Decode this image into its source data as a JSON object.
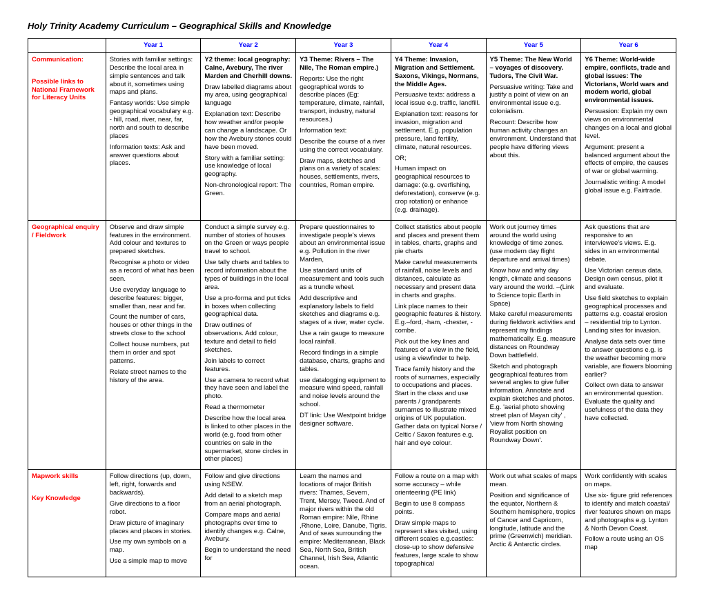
{
  "title": "Holy Trinity Academy Curriculum – Geographical Skills and Knowledge",
  "headers": [
    "Year 1",
    "Year 2",
    "Year 3",
    "Year 4",
    "Year 5",
    "Year 6"
  ],
  "rows": [
    {
      "label_lines": [
        "Communication:",
        "",
        "Possible links to National Framework for Literacy Units"
      ],
      "cells": [
        [
          "Stories with familiar settings: Describe the local area in simple sentences and talk about it, sometimes using maps and plans.",
          "Fantasy worlds: Use simple geographical vocabulary e.g. - hill, road, river, near, far, north and south to describe places",
          "Information texts: Ask and answer questions about places."
        ],
        [
          {
            "bold": true,
            "text": "Y2 theme: local geography: Calne, Avebury, The river Marden and Cherhill downs."
          },
          "Draw labelled diagrams about my area, using geographical language",
          "Explanation text: Describe how weather and/or people can change a landscape. Or how the Avebury stones could have been moved.",
          "Story with a familiar setting: use knowledge of local geography.",
          "Non-chronological report: The Green."
        ],
        [
          {
            "bold": true,
            "text": "Y3 Theme: Rivers – The Nile, The Roman empire.)"
          },
          "Reports:  Use the right geographical words to describe places (Eg: temperature, climate, rainfall, transport, industry, natural resources.)",
          "Information text:",
          "Describe the course of a river using the correct vocabulary.",
          "Draw maps, sketches and plans on a variety of scales: houses, settlements, rivers, countries, Roman empire."
        ],
        [
          {
            "bold": true,
            "text": "Y4 Theme: Invasion, Migration and Settlement.  Saxons, Vikings, Normans, the Middle Ages."
          },
          "Persuasive texts: address a local issue e.g. traffic, landfill.",
          "Explanation text: reasons for invasion, migration and settlement.  E.g. population pressure, land fertility, climate, natural resources.",
          "OR;",
          "Human impact on geographical resources to damage: (e.g. overfishing, deforestation), conserve (e.g. crop rotation) or enhance (e.g. drainage)."
        ],
        [
          {
            "bold": true,
            "text": "Y5 Theme: The New World – voyages of discovery.  Tudors, The Civil War."
          },
          "Persuasive writing: Take and justify a point of view on an environmental issue e.g. colonialism.",
          "Recount: Describe how human activity changes an environment. Understand that people have differing views about this."
        ],
        [
          {
            "bold": true,
            "text": "Y6 Theme: World-wide empire, conflicts, trade  and global issues: The Victorians, World wars and modern world, global environmental issues."
          },
          "Persuasion: Explain my own views on environmental changes on a local and global level.",
          "Argument: present a balanced argument about the effects of empire, the causes of war or global warming.",
          "Journalistic writing: A model global issue e.g. Fairtrade."
        ]
      ]
    },
    {
      "label_lines": [
        "Geographical enquiry / Fieldwork"
      ],
      "cells": [
        [
          "Observe and draw simple features in the environment.  Add colour and textures to prepared sketches.",
          "Recognise a photo or video as a record of what has been seen.",
          "Use everyday language to describe features: bigger, smaller than, near and far.",
          "Count the number of cars, houses or other things in the streets close to the school",
          "Collect house numbers, put them in order and spot patterns.",
          "Relate street names to the history of the area."
        ],
        [
          "Conduct a simple survey e.g. number of stories of houses on the Green or ways people travel to school.",
          "Use tally charts and tables to record information about the types of buildings in the local area.",
          "Use a pro-forma and put ticks in boxes when collecting geographical data.",
          "Draw outlines of observations.  Add colour, texture and detail to field sketches.",
          "Join labels to correct features.",
          "Use a camera to record what they have seen and label the photo.",
          "Read a thermometer",
          "Describe how the local area is linked to other places in the world (e.g. food from other countries on sale in the supermarket, stone circles in other places)"
        ],
        [
          "Prepare questionnaires to investigate people's views about an environmental issue e.g. Pollution in the river Marden,",
          "Use standard units of measurement and tools such as a trundle wheel.",
          "Add descriptive and explanatory labels to field sketches and diagrams e.g. stages of a river, water cycle.",
          "Use a rain gauge to measure local rainfall.",
          "Record findings in a simple database,  charts, graphs and tables.",
          "use datalogging equipment to measure wind speed, rainfall and noise levels around the school.",
          "DT link: Use Westpoint bridge designer software."
        ],
        [
          "Collect statistics about people and places and present them in tables, charts, graphs and pie charts",
          "Make careful measurements of rainfall, noise levels and distances, calculate as necessary and present data in charts and graphs.",
          "Link place names to their geographic features & history. E.g.–ford, -ham, -chester, -combe.",
          "Pick out the key lines and features of a view in the field, using a viewfinder to help.",
          "Trace family history and the roots of surnames, especially to occupations and places.  Start in the class and use parents / grandparents surnames to illustrate mixed origins of UK population.  Gather data on typical Norse / Celtic / Saxon features e.g. hair and eye colour."
        ],
        [
          "Work out journey times around the world using knowledge of time zones. (use modern day flight departure and arrival times)",
          "Know how and why day length, climate and seasons vary around the world. –(Link to Science topic Earth in Space)",
          "Make careful measurements during fieldwork activities and represent my findings mathematically. E.g. measure distances on Roundway Down battlefield.",
          "Sketch and photograph geographical features from several angles to give fuller information.  Annotate and explain sketches and photos. E.g. 'aerial photo showing street plan of Mayan city' ,  'view from North showing Royalist position on Roundway Down'."
        ],
        [
          "Ask questions that are responsive to an interviewee's views. E.g. sides in an environmental debate.",
          "Use Victorian census data. Design own census, pilot it and evaluate.",
          "Use field sketches to explain geographical processes and patterns e.g. coastal erosion – residential trip to Lynton. Landing sites for invasion.",
          "Analyse data sets over time to answer questions e.g. is the weather becoming more variable, are flowers blooming earlier?",
          "Collect own data to answer an environmental question. Evaluate the quality and usefulness of the data they have collected."
        ]
      ]
    },
    {
      "label_lines": [
        "Mapwork skills",
        "",
        "Key Knowledge"
      ],
      "cells": [
        [
          "Follow directions (up, down, left, right, forwards and backwards).",
          "Give directions to a floor robot.",
          "Draw picture of imaginary places and places in stories.",
          "Use my own symbols on a map.",
          "Use a simple map to move"
        ],
        [
          "Follow and give directions using NSEW.",
          "Add detail to a sketch map from an aerial photograph.",
          "Compare maps and aerial photographs over time to identify changes e.g. Calne, Avebury.",
          "Begin to understand the need for"
        ],
        [
          "Learn the names and locations of major British rivers: Thames, Severn, Trent, Mersey, Tweed. And of major rivers within the old Roman empire: Nile, Rhine ,Rhone, Loire, Danube, Tigris. And of seas surrounding the empire: Mediterranean, Black Sea, North Sea, British Channel, Irish Sea, Atlantic ocean."
        ],
        [
          "Follow a route on a map with some accuracy – while orienteering (PE link)",
          "Begin to use 8 compass points.",
          "Draw simple maps to represent sites visited, using different scales e.g.castles:  close-up to show defensive features, large scale to show topographical"
        ],
        [
          "Work out what scales of maps mean.",
          "Position and significance of the equator, Northern & Southern hemisphere,  tropics of Cancer and Capricorn, longitude, latitude and the prime (Greenwich) meridian. Arctic & Antarctic circles."
        ],
        [
          "Work confidently with scales on maps.",
          "Use six- figure grid references to identify and match coastal/ river features shown on maps and photographs e.g.  Lynton & North Devon Coast.",
          "Follow a route using an OS map"
        ]
      ]
    }
  ]
}
